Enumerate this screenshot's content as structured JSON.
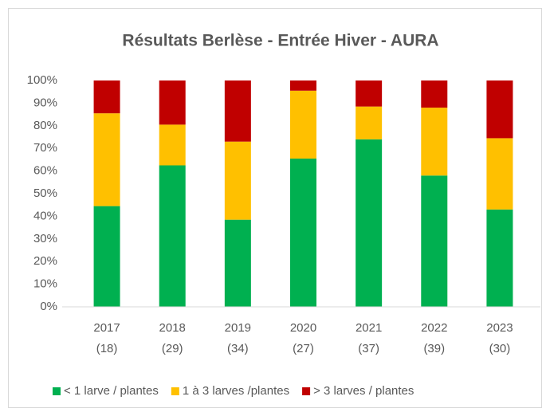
{
  "chart_data": {
    "type": "stacked_bar_100",
    "title": "Résultats Berlèse - Entrée Hiver - AURA",
    "categories": [
      [
        "2017",
        "(18)"
      ],
      [
        "2018",
        "(29)"
      ],
      [
        "2019",
        "(34)"
      ],
      [
        "2020",
        "(27)"
      ],
      [
        "2021",
        "(37)"
      ],
      [
        "2022",
        "(39)"
      ],
      [
        "2023",
        "(30)"
      ]
    ],
    "series": [
      {
        "name": "< 1 larve / plantes",
        "color": "#00b050",
        "values": [
          44.5,
          62.5,
          38.5,
          65.5,
          74,
          58,
          43
        ]
      },
      {
        "name": "1 à 3 larves /plantes",
        "color": "#ffc000",
        "values": [
          41,
          18,
          34.5,
          30,
          14.5,
          30,
          31.5
        ]
      },
      {
        "name": "> 3 larves / plantes",
        "color": "#c00000",
        "values": [
          14.5,
          19.5,
          27,
          4.5,
          11.5,
          12,
          25.5
        ]
      }
    ],
    "ylim": [
      0,
      100
    ],
    "yticks": [
      {
        "value": 0,
        "label": "0%"
      },
      {
        "value": 10,
        "label": "10%"
      },
      {
        "value": 20,
        "label": "20%"
      },
      {
        "value": 30,
        "label": "30%"
      },
      {
        "value": 40,
        "label": "40%"
      },
      {
        "value": 50,
        "label": "50%"
      },
      {
        "value": 60,
        "label": "60%"
      },
      {
        "value": 70,
        "label": "70%"
      },
      {
        "value": 80,
        "label": "80%"
      },
      {
        "value": 90,
        "label": "90%"
      },
      {
        "value": 100,
        "label": "100%"
      }
    ],
    "grid": false,
    "legend": "bottom"
  }
}
